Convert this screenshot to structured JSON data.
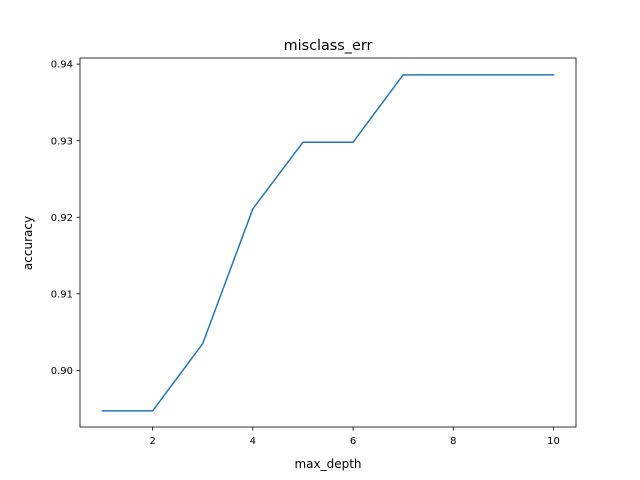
{
  "chart_data": {
    "type": "line",
    "title": "misclass_err",
    "xlabel": "max_depth",
    "ylabel": "accuracy",
    "x": [
      1,
      2,
      3,
      4,
      5,
      6,
      7,
      8,
      9,
      10
    ],
    "series": [
      {
        "values": [
          0.8947,
          0.8947,
          0.9035,
          0.9211,
          0.9298,
          0.9298,
          0.9386,
          0.9386,
          0.9386,
          0.9386
        ]
      }
    ],
    "xlim": [
      0.55,
      10.45
    ],
    "ylim": [
      0.8926,
      0.9408
    ],
    "xticks": [
      2,
      4,
      6,
      8,
      10
    ],
    "xtick_labels": [
      "2",
      "4",
      "6",
      "8",
      "10"
    ],
    "yticks": [
      0.9,
      0.91,
      0.92,
      0.93,
      0.94
    ],
    "ytick_labels": [
      "0.90",
      "0.91",
      "0.92",
      "0.93",
      "0.94"
    ],
    "grid": false,
    "line_color": "#1f77b4"
  }
}
